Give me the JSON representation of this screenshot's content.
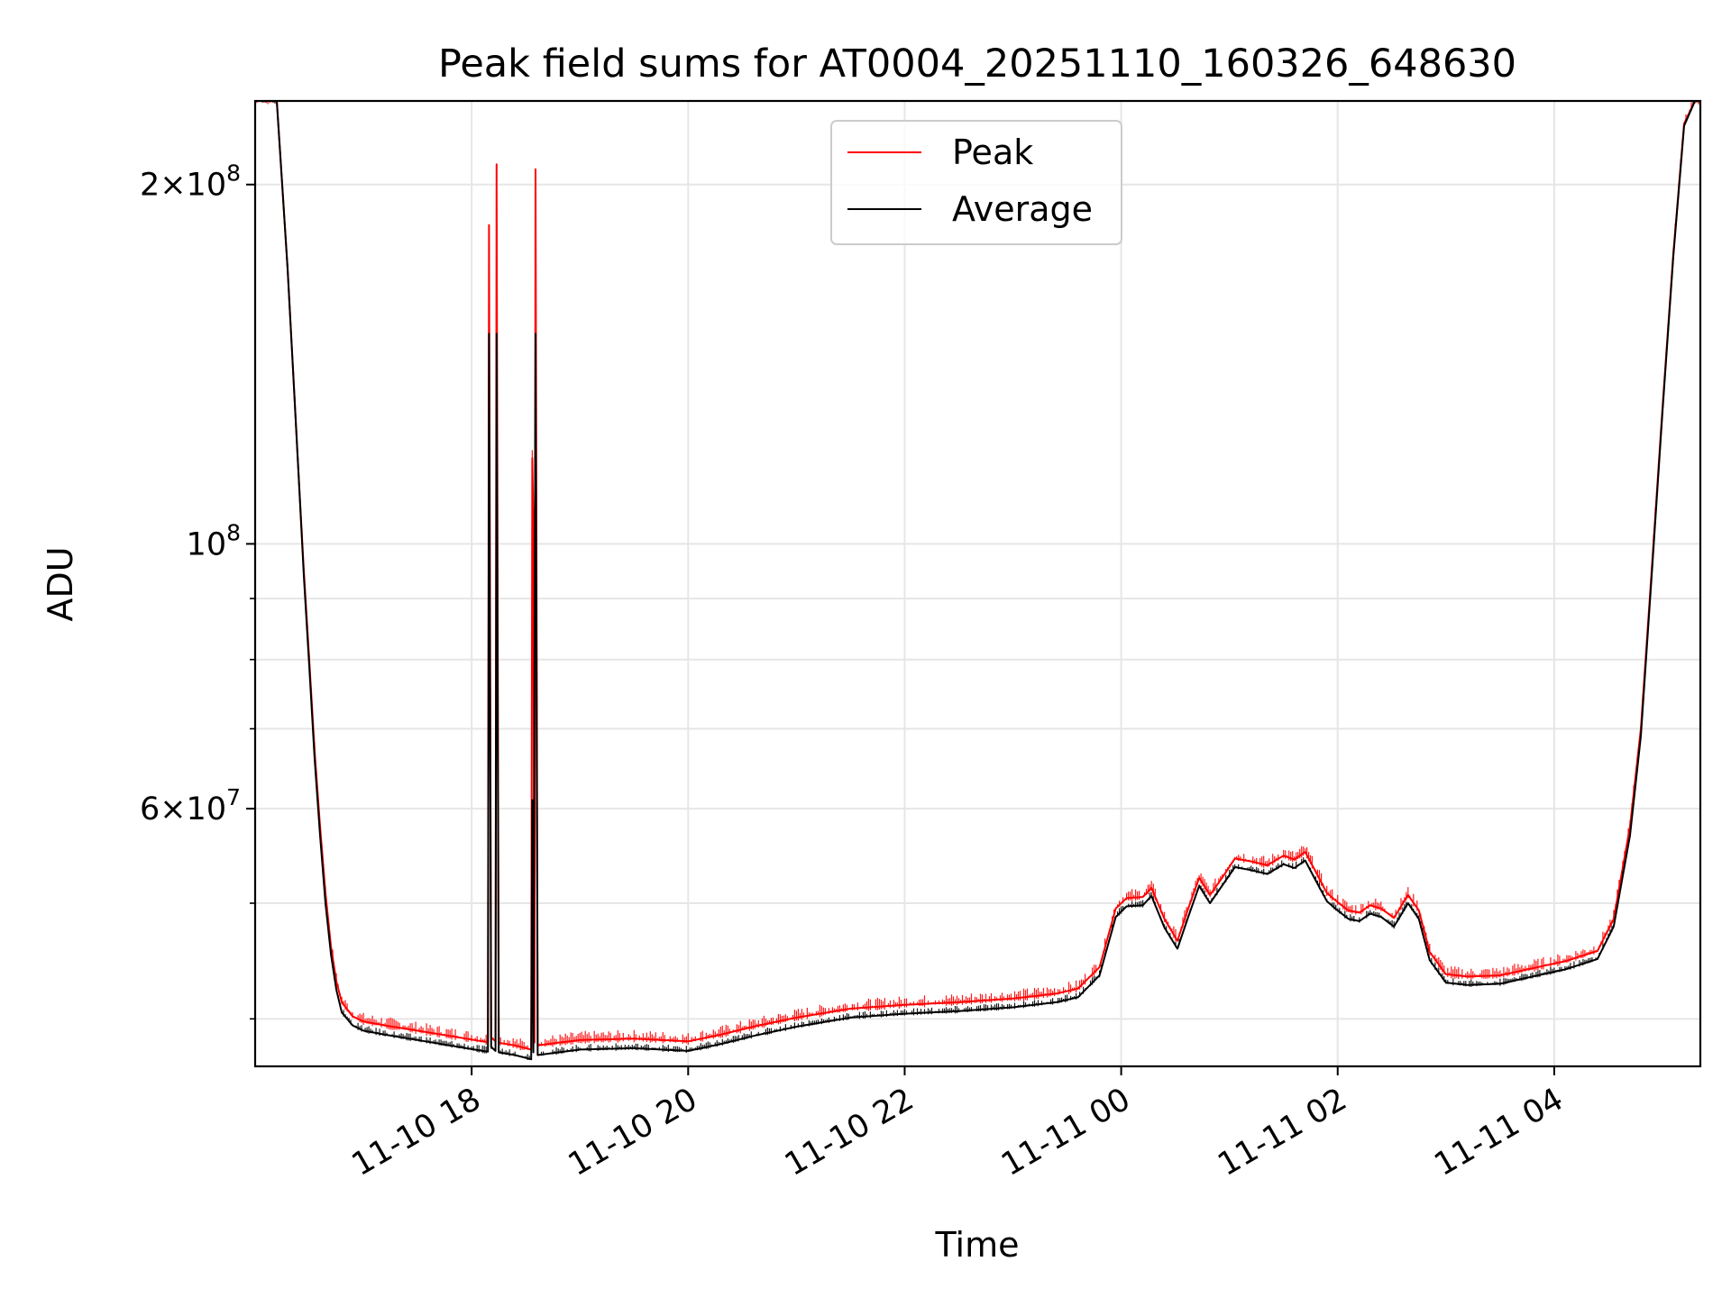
{
  "chart_data": {
    "type": "line",
    "title": "Peak field sums for AT0004_20251110_160326_648630",
    "xlabel": "Time",
    "ylabel": "ADU",
    "yscale": "log",
    "ylim": [
      36500000,
      235000000
    ],
    "grid": true,
    "legend_position": "upper-center",
    "x_ticks": [
      {
        "hours": 2.0,
        "label": "11-10 18"
      },
      {
        "hours": 4.0,
        "label": "11-10 20"
      },
      {
        "hours": 6.0,
        "label": "11-10 22"
      },
      {
        "hours": 8.0,
        "label": "11-11 00"
      },
      {
        "hours": 10.0,
        "label": "11-11 02"
      },
      {
        "hours": 12.0,
        "label": "11-11 04"
      }
    ],
    "x_range_hours": [
      0.0,
      13.35
    ],
    "y_ticks": [
      {
        "value": 200000000,
        "label": "2×10",
        "exp": "8"
      },
      {
        "value": 100000000,
        "label": "10",
        "exp": "8"
      },
      {
        "value": 60000000,
        "label": "6×10",
        "exp": "7"
      }
    ],
    "y_minor_ticks": [
      40000000,
      50000000,
      70000000,
      80000000,
      90000000
    ],
    "series": [
      {
        "name": "Peak",
        "color": "#ff0000",
        "points": [
          [
            0.0,
            235000000
          ],
          [
            0.2,
            235000000
          ],
          [
            0.25,
            200000000
          ],
          [
            0.3,
            170000000
          ],
          [
            0.35,
            140000000
          ],
          [
            0.4,
            115000000
          ],
          [
            0.45,
            95000000
          ],
          [
            0.5,
            80000000
          ],
          [
            0.55,
            67000000
          ],
          [
            0.6,
            58000000
          ],
          [
            0.65,
            51000000
          ],
          [
            0.7,
            46000000
          ],
          [
            0.75,
            43000000
          ],
          [
            0.8,
            41300000
          ],
          [
            0.9,
            40200000
          ],
          [
            1.0,
            39800000
          ],
          [
            1.2,
            39500000
          ],
          [
            1.5,
            39100000
          ],
          [
            1.8,
            38700000
          ],
          [
            2.1,
            38300000
          ],
          [
            2.15,
            38250000
          ],
          [
            2.16,
            185000000
          ],
          [
            2.18,
            38600000
          ],
          [
            2.22,
            38300000
          ],
          [
            2.23,
            208000000
          ],
          [
            2.25,
            38200000
          ],
          [
            2.4,
            38000000
          ],
          [
            2.55,
            37700000
          ],
          [
            2.56,
            118000000
          ],
          [
            2.57,
            105000000
          ],
          [
            2.58,
            38200000
          ],
          [
            2.59,
            206000000
          ],
          [
            2.61,
            38000000
          ],
          [
            2.8,
            38200000
          ],
          [
            3.0,
            38400000
          ],
          [
            3.5,
            38500000
          ],
          [
            4.0,
            38300000
          ],
          [
            4.3,
            38800000
          ],
          [
            4.6,
            39400000
          ],
          [
            5.0,
            40100000
          ],
          [
            5.5,
            40800000
          ],
          [
            6.0,
            41100000
          ],
          [
            6.5,
            41300000
          ],
          [
            7.0,
            41600000
          ],
          [
            7.4,
            42000000
          ],
          [
            7.6,
            42400000
          ],
          [
            7.8,
            44200000
          ],
          [
            7.95,
            49500000
          ],
          [
            8.05,
            50500000
          ],
          [
            8.2,
            50600000
          ],
          [
            8.28,
            51500000
          ],
          [
            8.4,
            48500000
          ],
          [
            8.52,
            46500000
          ],
          [
            8.62,
            49500000
          ],
          [
            8.72,
            52500000
          ],
          [
            8.82,
            50800000
          ],
          [
            8.95,
            52800000
          ],
          [
            9.05,
            54500000
          ],
          [
            9.2,
            54200000
          ],
          [
            9.35,
            53800000
          ],
          [
            9.5,
            54800000
          ],
          [
            9.6,
            54400000
          ],
          [
            9.7,
            55200000
          ],
          [
            9.78,
            53500000
          ],
          [
            9.9,
            51000000
          ],
          [
            10.0,
            50100000
          ],
          [
            10.1,
            49300000
          ],
          [
            10.2,
            49100000
          ],
          [
            10.3,
            49800000
          ],
          [
            10.4,
            49500000
          ],
          [
            10.52,
            48600000
          ],
          [
            10.65,
            50800000
          ],
          [
            10.75,
            49300000
          ],
          [
            10.85,
            45500000
          ],
          [
            11.0,
            43600000
          ],
          [
            11.2,
            43400000
          ],
          [
            11.5,
            43500000
          ],
          [
            11.8,
            44100000
          ],
          [
            12.1,
            44700000
          ],
          [
            12.4,
            45600000
          ],
          [
            12.55,
            48500000
          ],
          [
            12.7,
            58000000
          ],
          [
            12.8,
            70000000
          ],
          [
            12.9,
            95000000
          ],
          [
            13.0,
            130000000
          ],
          [
            13.1,
            175000000
          ],
          [
            13.2,
            225000000
          ],
          [
            13.3,
            235000000
          ],
          [
            13.35,
            235000000
          ]
        ]
      },
      {
        "name": "Average",
        "color": "#000000",
        "points": [
          [
            0.0,
            235000000
          ],
          [
            0.2,
            235000000
          ],
          [
            0.25,
            200000000
          ],
          [
            0.3,
            170000000
          ],
          [
            0.35,
            140000000
          ],
          [
            0.4,
            115000000
          ],
          [
            0.45,
            94000000
          ],
          [
            0.5,
            79000000
          ],
          [
            0.55,
            66000000
          ],
          [
            0.6,
            57000000
          ],
          [
            0.65,
            50000000
          ],
          [
            0.7,
            45300000
          ],
          [
            0.75,
            42300000
          ],
          [
            0.8,
            40500000
          ],
          [
            0.9,
            39500000
          ],
          [
            1.0,
            39100000
          ],
          [
            1.2,
            38800000
          ],
          [
            1.5,
            38400000
          ],
          [
            1.8,
            38000000
          ],
          [
            2.1,
            37600000
          ],
          [
            2.15,
            37550000
          ],
          [
            2.16,
            150000000
          ],
          [
            2.18,
            37900000
          ],
          [
            2.22,
            37600000
          ],
          [
            2.23,
            150000000
          ],
          [
            2.25,
            37500000
          ],
          [
            2.4,
            37300000
          ],
          [
            2.55,
            37000000
          ],
          [
            2.56,
            61000000
          ],
          [
            2.57,
            37500000
          ],
          [
            2.59,
            150000000
          ],
          [
            2.61,
            37300000
          ],
          [
            2.8,
            37500000
          ],
          [
            3.0,
            37700000
          ],
          [
            3.5,
            37800000
          ],
          [
            4.0,
            37600000
          ],
          [
            4.3,
            38100000
          ],
          [
            4.6,
            38700000
          ],
          [
            5.0,
            39400000
          ],
          [
            5.5,
            40100000
          ],
          [
            6.0,
            40400000
          ],
          [
            6.5,
            40600000
          ],
          [
            7.0,
            40900000
          ],
          [
            7.4,
            41300000
          ],
          [
            7.6,
            41700000
          ],
          [
            7.8,
            43500000
          ],
          [
            7.95,
            48700000
          ],
          [
            8.05,
            49700000
          ],
          [
            8.2,
            49800000
          ],
          [
            8.28,
            50700000
          ],
          [
            8.4,
            47700000
          ],
          [
            8.52,
            45800000
          ],
          [
            8.62,
            48700000
          ],
          [
            8.72,
            51700000
          ],
          [
            8.82,
            50000000
          ],
          [
            8.95,
            52000000
          ],
          [
            9.05,
            53600000
          ],
          [
            9.2,
            53300000
          ],
          [
            9.35,
            52900000
          ],
          [
            9.5,
            53900000
          ],
          [
            9.6,
            53500000
          ],
          [
            9.7,
            54300000
          ],
          [
            9.78,
            52600000
          ],
          [
            9.9,
            50200000
          ],
          [
            10.0,
            49300000
          ],
          [
            10.1,
            48500000
          ],
          [
            10.2,
            48300000
          ],
          [
            10.3,
            49000000
          ],
          [
            10.4,
            48700000
          ],
          [
            10.52,
            47800000
          ],
          [
            10.65,
            50000000
          ],
          [
            10.75,
            48500000
          ],
          [
            10.85,
            44800000
          ],
          [
            11.0,
            42900000
          ],
          [
            11.2,
            42700000
          ],
          [
            11.5,
            42800000
          ],
          [
            11.8,
            43400000
          ],
          [
            12.1,
            44000000
          ],
          [
            12.4,
            44900000
          ],
          [
            12.55,
            47800000
          ],
          [
            12.7,
            57000000
          ],
          [
            12.8,
            69000000
          ],
          [
            12.9,
            94000000
          ],
          [
            13.0,
            129000000
          ],
          [
            13.1,
            174000000
          ],
          [
            13.2,
            224000000
          ],
          [
            13.3,
            235000000
          ],
          [
            13.35,
            235000000
          ]
        ]
      }
    ]
  }
}
